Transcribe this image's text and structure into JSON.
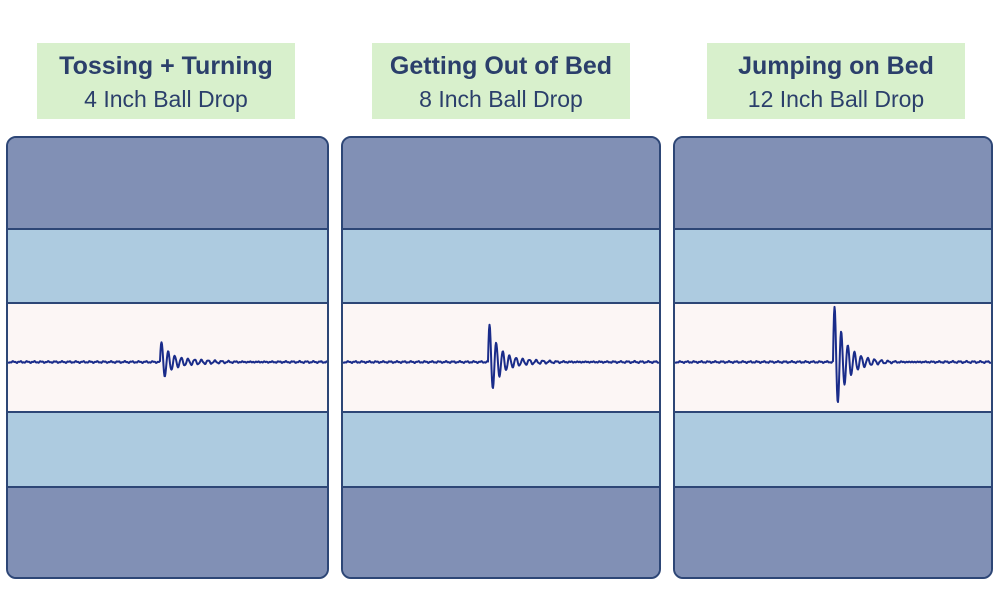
{
  "colors": {
    "label_bg": "#d8f0cc",
    "text": "#2b3f6b",
    "outline": "#2d4676",
    "dark_layer": "#8190b5",
    "light_layer": "#adcbe0",
    "core_layer": "#fcf6f5",
    "wave": "#1a2c8a"
  },
  "panels": [
    {
      "title": "Tossing + Turning",
      "subtitle": "4 Inch Ball Drop",
      "amplitude_level": 0.33
    },
    {
      "title": "Getting Out of Bed",
      "subtitle": "8 Inch Ball Drop",
      "amplitude_level": 0.66
    },
    {
      "title": "Jumping on Bed",
      "subtitle": "12 Inch Ball Drop",
      "amplitude_level": 1.0
    }
  ]
}
